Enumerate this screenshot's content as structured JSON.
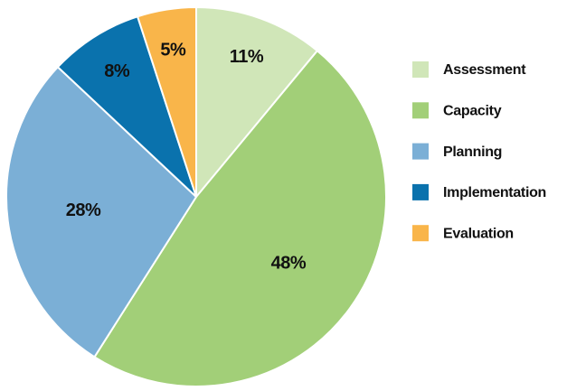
{
  "chart_data": {
    "type": "pie",
    "categories": [
      "Assessment",
      "Capacity",
      "Planning",
      "Implementation",
      "Evaluation"
    ],
    "values": [
      11,
      48,
      28,
      8,
      5
    ],
    "value_labels": [
      "11%",
      "48%",
      "28%",
      "8%",
      "5%"
    ],
    "colors": [
      "#d0e6b8",
      "#a2cf78",
      "#7bafd6",
      "#0a72ad",
      "#f9b54a"
    ],
    "legend": "right"
  }
}
